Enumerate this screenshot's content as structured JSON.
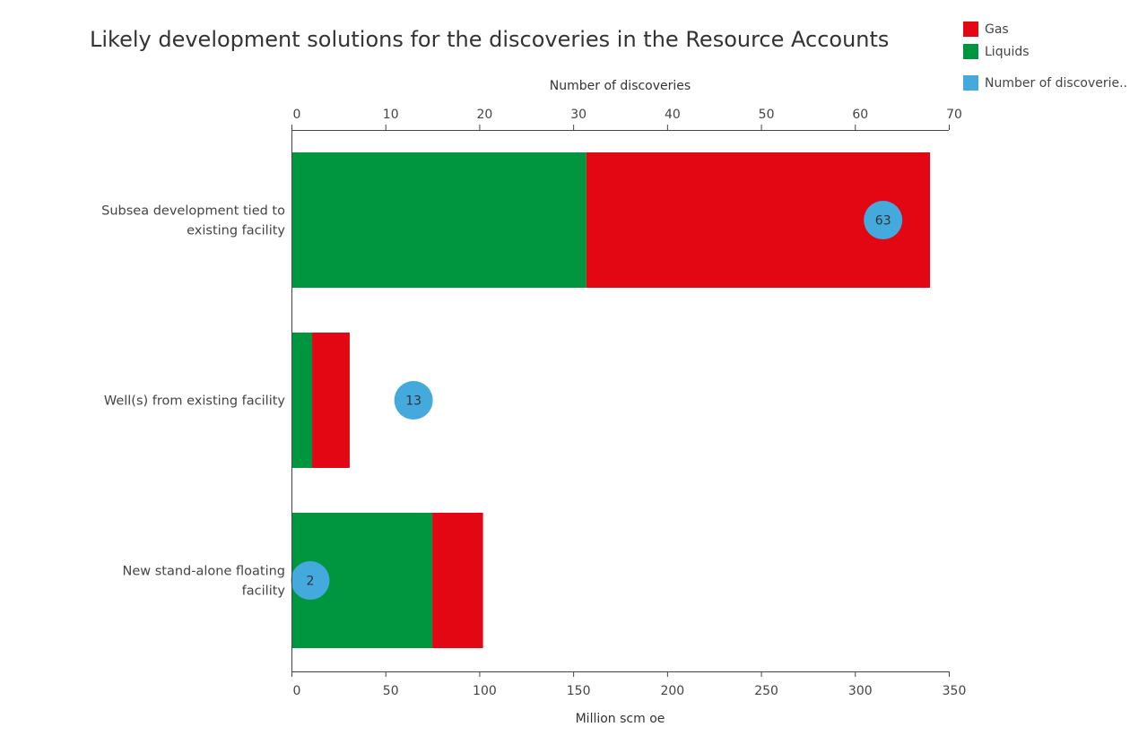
{
  "chart_data": {
    "type": "bar",
    "orientation": "horizontal",
    "stacked": true,
    "title": "Likely development solutions for the discoveries in the Resource Accounts",
    "categories": [
      "Subsea development tied to\nexisting facility",
      "Well(s) from existing facility",
      "New stand-alone floating\nfacility"
    ],
    "series": [
      {
        "name": "Liquids",
        "color": "#009640",
        "values": [
          157,
          11,
          75
        ]
      },
      {
        "name": "Gas",
        "color": "#e30613",
        "values": [
          183,
          20,
          27
        ]
      }
    ],
    "overlay_series": {
      "name": "Number of discoverie..",
      "color": "#44aadd",
      "values": [
        63,
        13,
        2
      ],
      "labels": [
        "63",
        "13",
        "2"
      ]
    },
    "xlabel": "Million scm oe",
    "xlim": [
      0,
      350
    ],
    "x_ticks": [
      "0",
      "50",
      "100",
      "150",
      "200",
      "250",
      "300",
      "350"
    ],
    "x2label": "Number of discoveries",
    "x2lim": [
      0,
      70
    ],
    "x2_ticks": [
      "0",
      "10",
      "20",
      "30",
      "40",
      "50",
      "60",
      "70"
    ],
    "grid": false,
    "legend_position": "top-right"
  },
  "legend": [
    {
      "label": "Gas",
      "color": "#e30613"
    },
    {
      "label": "Liquids",
      "color": "#009640"
    },
    {
      "label": "Number of discoverie..",
      "color": "#44aadd"
    }
  ]
}
